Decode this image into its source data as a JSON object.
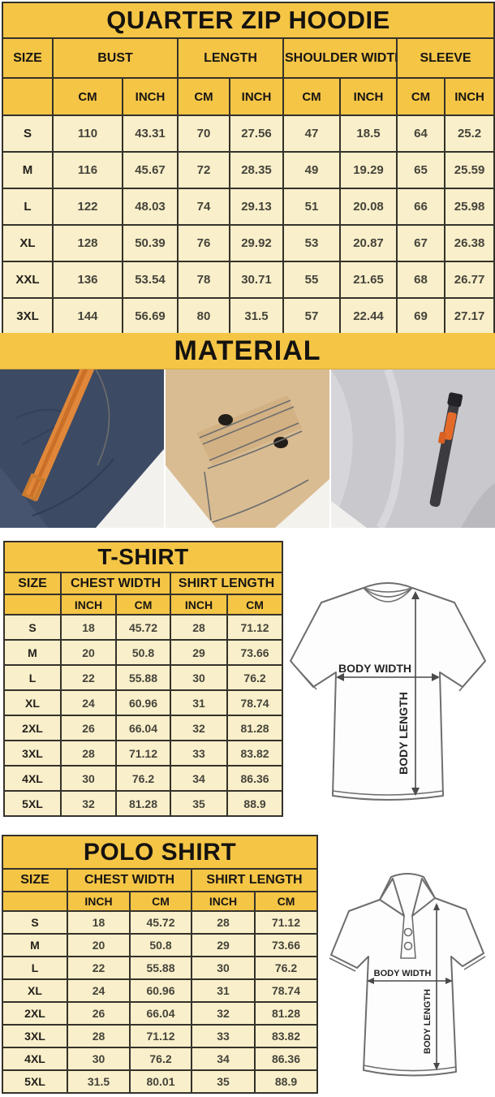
{
  "colors": {
    "header_yellow": "#f5c546",
    "cell_cream": "#f9efca",
    "border_dark": "#35322b",
    "accent_orange": "#e0873a",
    "navy_fabric": "#3d4a63",
    "khaki_fabric": "#d9bc92",
    "gray_fabric": "#c9c8cc"
  },
  "hoodie": {
    "title": "QUARTER ZIP HOODIE",
    "columns": [
      "SIZE",
      "BUST",
      "LENGTH",
      "SHOULDER WIDTH",
      "SLEEVE"
    ],
    "units": [
      "CM",
      "INCH",
      "CM",
      "INCH",
      "CM",
      "INCH",
      "CM",
      "INCH"
    ],
    "rows": [
      {
        "size": "S",
        "values": [
          "110",
          "43.31",
          "70",
          "27.56",
          "47",
          "18.5",
          "64",
          "25.2"
        ]
      },
      {
        "size": "M",
        "values": [
          "116",
          "45.67",
          "72",
          "28.35",
          "49",
          "19.29",
          "65",
          "25.59"
        ]
      },
      {
        "size": "L",
        "values": [
          "122",
          "48.03",
          "74",
          "29.13",
          "51",
          "20.08",
          "66",
          "25.98"
        ]
      },
      {
        "size": "XL",
        "values": [
          "128",
          "50.39",
          "76",
          "29.92",
          "53",
          "20.87",
          "67",
          "26.38"
        ]
      },
      {
        "size": "XXL",
        "values": [
          "136",
          "53.54",
          "78",
          "30.71",
          "55",
          "21.65",
          "68",
          "26.77"
        ]
      },
      {
        "size": "3XL",
        "values": [
          "144",
          "56.69",
          "80",
          "31.5",
          "57",
          "22.44",
          "69",
          "27.17"
        ]
      }
    ]
  },
  "material": {
    "title": "MATERIAL",
    "photos": [
      "navy-fleece-with-orange-strap",
      "khaki-snap-button-pocket",
      "gray-fleece-with-zipper"
    ]
  },
  "tshirt": {
    "title": "T-SHIRT",
    "columns": [
      "SIZE",
      "CHEST WIDTH",
      "SHIRT LENGTH"
    ],
    "units": [
      "INCH",
      "CM",
      "INCH",
      "CM"
    ],
    "rows": [
      {
        "size": "S",
        "values": [
          "18",
          "45.72",
          "28",
          "71.12"
        ]
      },
      {
        "size": "M",
        "values": [
          "20",
          "50.8",
          "29",
          "73.66"
        ]
      },
      {
        "size": "L",
        "values": [
          "22",
          "55.88",
          "30",
          "76.2"
        ]
      },
      {
        "size": "XL",
        "values": [
          "24",
          "60.96",
          "31",
          "78.74"
        ]
      },
      {
        "size": "2XL",
        "values": [
          "26",
          "66.04",
          "32",
          "81.28"
        ]
      },
      {
        "size": "3XL",
        "values": [
          "28",
          "71.12",
          "33",
          "83.82"
        ]
      },
      {
        "size": "4XL",
        "values": [
          "30",
          "76.2",
          "34",
          "86.36"
        ]
      },
      {
        "size": "5XL",
        "values": [
          "32",
          "81.28",
          "35",
          "88.9"
        ]
      }
    ]
  },
  "polo": {
    "title": "POLO SHIRT",
    "columns": [
      "SIZE",
      "CHEST WIDTH",
      "SHIRT LENGTH"
    ],
    "units": [
      "INCH",
      "CM",
      "INCH",
      "CM"
    ],
    "rows": [
      {
        "size": "S",
        "values": [
          "18",
          "45.72",
          "28",
          "71.12"
        ]
      },
      {
        "size": "M",
        "values": [
          "20",
          "50.8",
          "29",
          "73.66"
        ]
      },
      {
        "size": "L",
        "values": [
          "22",
          "55.88",
          "30",
          "76.2"
        ]
      },
      {
        "size": "XL",
        "values": [
          "24",
          "60.96",
          "31",
          "78.74"
        ]
      },
      {
        "size": "2XL",
        "values": [
          "26",
          "66.04",
          "32",
          "81.28"
        ]
      },
      {
        "size": "3XL",
        "values": [
          "28",
          "71.12",
          "33",
          "83.82"
        ]
      },
      {
        "size": "4XL",
        "values": [
          "30",
          "76.2",
          "34",
          "86.36"
        ]
      },
      {
        "size": "5XL",
        "values": [
          "31.5",
          "80.01",
          "35",
          "88.9"
        ]
      }
    ]
  },
  "diagrams": {
    "tshirt": {
      "width_label": "BODY WIDTH",
      "length_label": "BODY LENGTH"
    },
    "polo": {
      "width_label": "BODY WIDTH",
      "length_label": "BODY LENGTH"
    }
  }
}
